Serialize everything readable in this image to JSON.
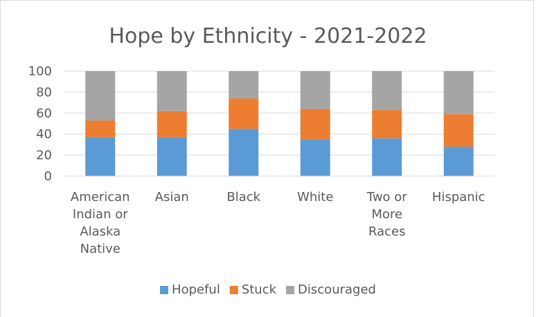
{
  "chart_data": {
    "type": "bar",
    "stacked": true,
    "title": "Hope by Ethnicity - 2021-2022",
    "xlabel": "",
    "ylabel": "",
    "ylim": [
      0,
      100
    ],
    "yticks": [
      0,
      20,
      40,
      60,
      80,
      100
    ],
    "grid": true,
    "legend_position": "bottom",
    "categories": [
      [
        "American",
        "Indian or",
        "Alaska",
        "Native"
      ],
      [
        "Asian"
      ],
      [
        "Black"
      ],
      [
        "White"
      ],
      [
        "Two or",
        "More",
        "Races"
      ],
      [
        "Hispanic"
      ]
    ],
    "series": [
      {
        "name": "Hopeful",
        "color": "#5b9bd5",
        "values": [
          37,
          37,
          45,
          35,
          36,
          28
        ]
      },
      {
        "name": "Stuck",
        "color": "#ed7d31",
        "values": [
          16,
          25,
          29,
          29,
          27,
          31
        ]
      },
      {
        "name": "Discouraged",
        "color": "#a5a5a5",
        "values": [
          47,
          38,
          26,
          36,
          37,
          41
        ]
      }
    ]
  }
}
